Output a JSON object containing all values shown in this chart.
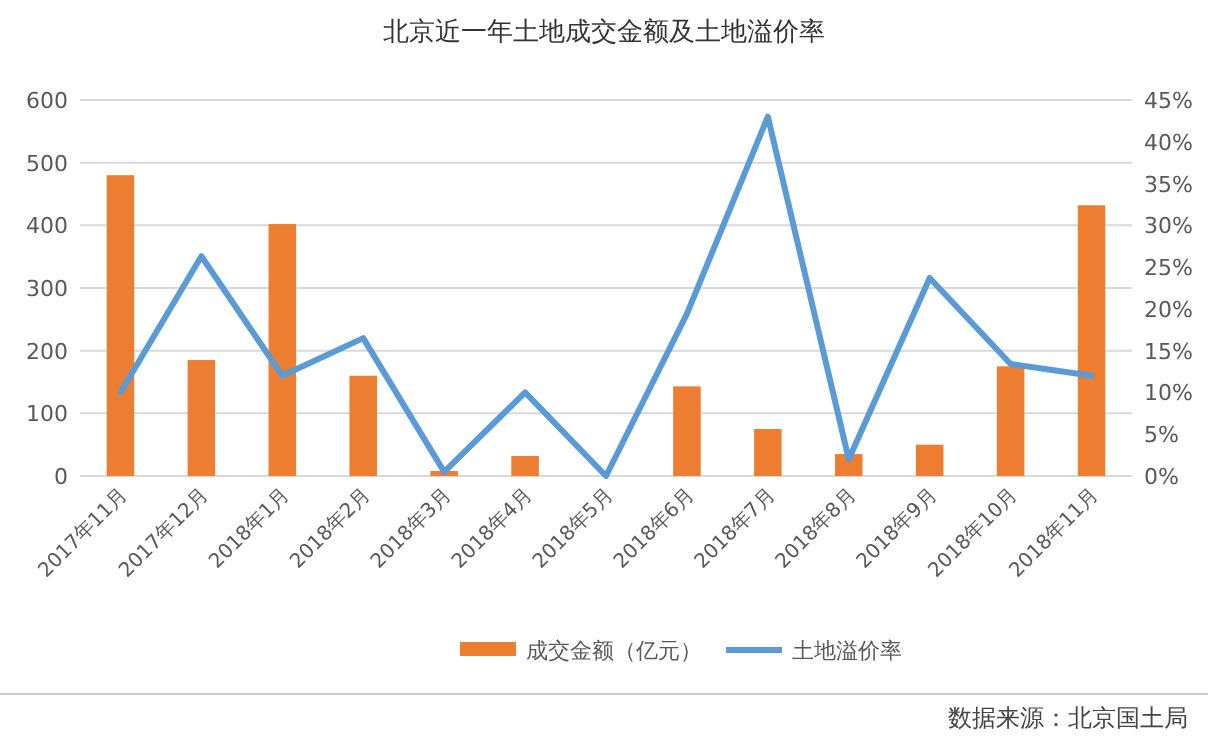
{
  "chart_data": {
    "type": "bar",
    "title": "北京近一年土地成交金额及土地溢价率",
    "categories": [
      "2017年11月",
      "2017年12月",
      "2018年1月",
      "2018年2月",
      "2018年3月",
      "2018年4月",
      "2018年5月",
      "2018年6月",
      "2018年7月",
      "2018年8月",
      "2018年9月",
      "2018年10月",
      "2018年11月"
    ],
    "series": [
      {
        "name": "成交金额（亿元）",
        "color": "#ed7d31",
        "values": [
          480,
          185,
          402,
          160,
          8,
          32,
          0,
          143,
          75,
          35,
          50,
          175,
          432
        ]
      },
      {
        "name": "土地溢价率",
        "type": "line",
        "axis": "y2",
        "color": "#5b9bd5",
        "values": [
          10,
          26.3,
          12,
          16.5,
          0.5,
          10,
          0,
          19.4,
          43,
          2,
          23.7,
          13.4,
          12
        ]
      }
    ],
    "ylim": [
      0,
      600
    ],
    "yticks": [
      0,
      100,
      200,
      300,
      400,
      500,
      600
    ],
    "y2lim": [
      0,
      45
    ],
    "y2ticks": [
      {
        "value": 0,
        "label": "0%"
      },
      {
        "value": 5,
        "label": "5%"
      },
      {
        "value": 10,
        "label": "10%"
      },
      {
        "value": 15,
        "label": "15%"
      },
      {
        "value": 20,
        "label": "20%"
      },
      {
        "value": 25,
        "label": "25%"
      },
      {
        "value": 30,
        "label": "30%"
      },
      {
        "value": 35,
        "label": "35%"
      },
      {
        "value": 40,
        "label": "40%"
      },
      {
        "value": 45,
        "label": "45%"
      }
    ],
    "grid": "y",
    "legend": "bottom",
    "annotations": [
      "数据来源：北京国土局"
    ]
  }
}
